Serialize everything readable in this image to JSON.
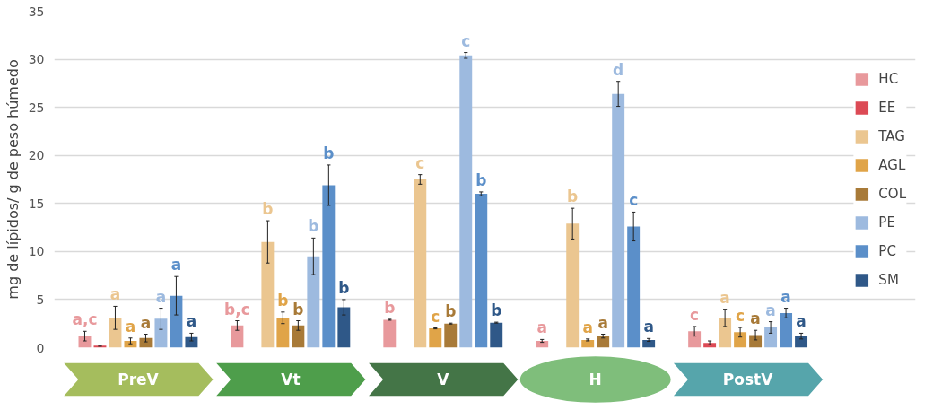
{
  "chart_data": {
    "type": "bar",
    "ylabel": "mg de lípidos/ g de peso húmedo",
    "categories": [
      "PreV",
      "Vt",
      "V",
      "H",
      "PostV"
    ],
    "ylim": [
      0,
      35
    ],
    "yticks": [
      0,
      5,
      10,
      15,
      20,
      25,
      30,
      35
    ],
    "grid": "y",
    "legend": "right",
    "series": [
      {
        "name": "HC",
        "color": "#e8999c",
        "values": [
          1.2,
          2.3,
          2.9,
          0.7,
          1.7
        ],
        "errors": [
          0.5,
          0.5,
          0.05,
          0.15,
          0.5
        ],
        "value_labels": [
          "a,c",
          "b,c",
          "b",
          "a",
          "c"
        ]
      },
      {
        "name": "EE",
        "color": "#dc4a55",
        "values": [
          0.2,
          null,
          null,
          null,
          0.5
        ],
        "errors": [
          0.05,
          null,
          null,
          null,
          0.2
        ],
        "value_labels": [
          null,
          null,
          null,
          null,
          null
        ]
      },
      {
        "name": "TAG",
        "color": "#ebc690",
        "values": [
          3.1,
          11.0,
          17.5,
          12.9,
          3.1
        ],
        "errors": [
          1.2,
          2.2,
          0.5,
          1.6,
          0.9
        ],
        "value_labels": [
          "a",
          "b",
          "c",
          "b",
          "a"
        ]
      },
      {
        "name": "AGL",
        "color": "#e0a448",
        "values": [
          0.7,
          3.1,
          2.0,
          0.8,
          1.6
        ],
        "errors": [
          0.3,
          0.6,
          0.05,
          0.1,
          0.5
        ],
        "value_labels": [
          "a",
          "b",
          "c",
          "a",
          "c"
        ]
      },
      {
        "name": "COL",
        "color": "#a87a38",
        "values": [
          1.0,
          2.3,
          2.5,
          1.2,
          1.3
        ],
        "errors": [
          0.4,
          0.5,
          0.05,
          0.2,
          0.5
        ],
        "value_labels": [
          "a",
          "b",
          "b",
          "a",
          "a"
        ]
      },
      {
        "name": "PE",
        "color": "#9dbadf",
        "values": [
          3.0,
          9.5,
          30.4,
          26.4,
          2.1
        ],
        "errors": [
          1.1,
          1.9,
          0.3,
          1.3,
          0.6
        ],
        "value_labels": [
          "a",
          "b",
          "c",
          "d",
          "a"
        ]
      },
      {
        "name": "PC",
        "color": "#5b8fc9",
        "values": [
          5.4,
          16.9,
          16.0,
          12.6,
          3.6
        ],
        "errors": [
          2.0,
          2.1,
          0.2,
          1.5,
          0.5
        ],
        "value_labels": [
          "a",
          "b",
          "b",
          "c",
          "a"
        ]
      },
      {
        "name": "SM",
        "color": "#2f5888",
        "values": [
          1.1,
          4.2,
          2.6,
          0.8,
          1.2
        ],
        "errors": [
          0.4,
          0.8,
          0.05,
          0.15,
          0.3
        ],
        "value_labels": [
          "a",
          "b",
          "b",
          "a",
          "a"
        ]
      }
    ]
  }
}
